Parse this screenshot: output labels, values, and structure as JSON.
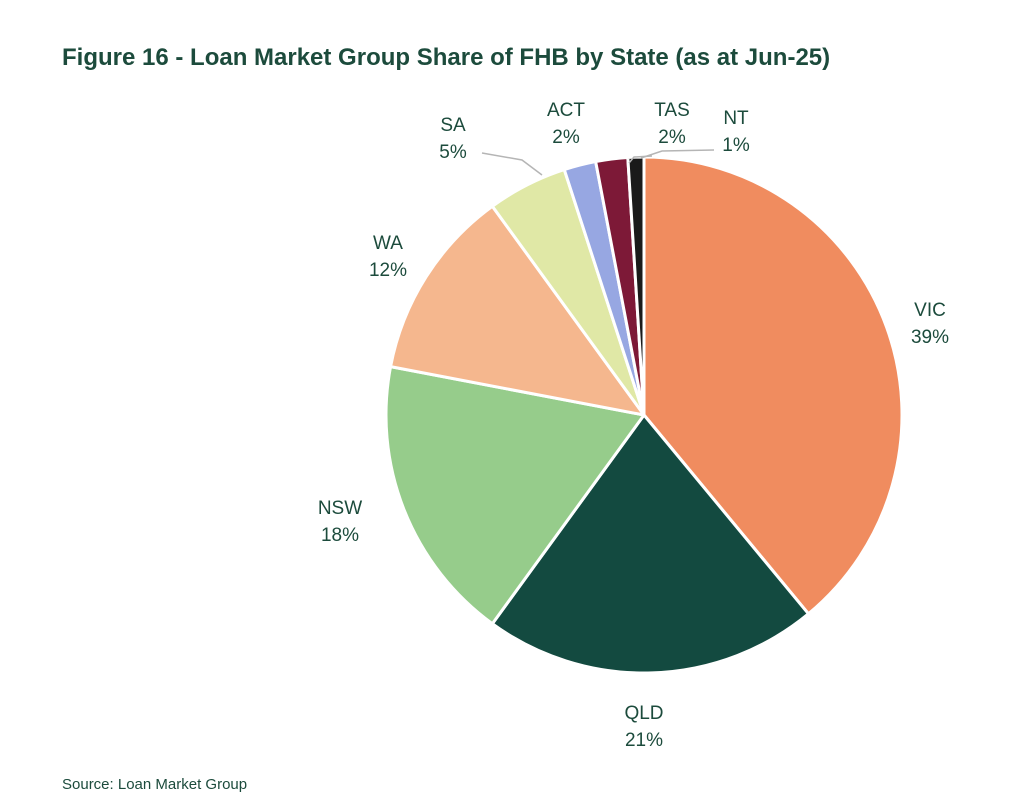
{
  "title": "Figure 16 - Loan Market Group Share of FHB by State (as at Jun-25)",
  "source": "Source: Loan Market Group",
  "chart_data": {
    "type": "pie",
    "title": "Figure 16 - Loan Market Group Share of FHB by State (as at Jun-25)",
    "direction": "clockwise",
    "start_angle": "12 o'clock",
    "slices": [
      {
        "label": "VIC",
        "value": 39,
        "display": "39%",
        "color": "#f08c5f"
      },
      {
        "label": "QLD",
        "value": 21,
        "display": "21%",
        "color": "#134a40"
      },
      {
        "label": "NSW",
        "value": 18,
        "display": "18%",
        "color": "#96cc8b"
      },
      {
        "label": "WA",
        "value": 12,
        "display": "12%",
        "color": "#f5b78e"
      },
      {
        "label": "SA",
        "value": 5,
        "display": "5%",
        "color": "#e0e8a6"
      },
      {
        "label": "ACT",
        "value": 2,
        "display": "2%",
        "color": "#97a7e2"
      },
      {
        "label": "TAS",
        "value": 2,
        "display": "2%",
        "color": "#7d1937"
      },
      {
        "label": "NT",
        "value": 1,
        "display": "1%",
        "color": "#1a1a1a"
      }
    ]
  }
}
